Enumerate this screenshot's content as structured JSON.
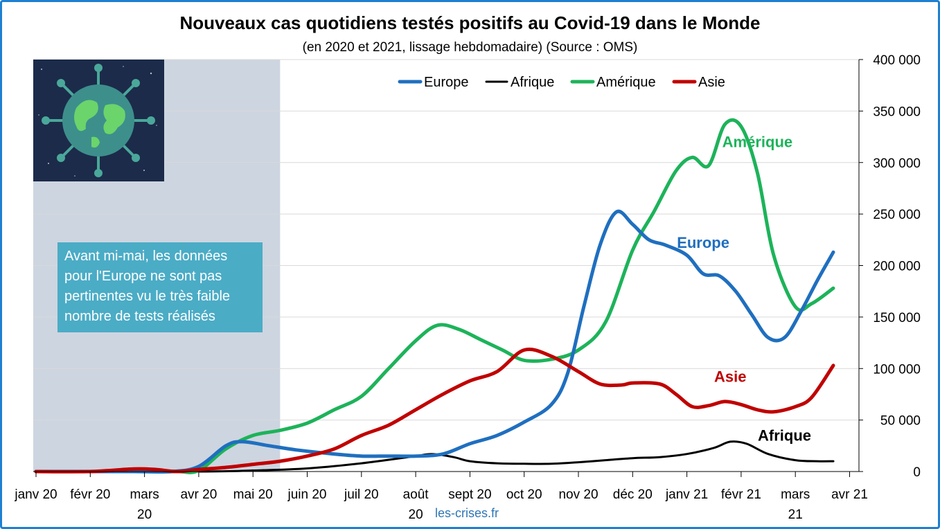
{
  "title": "Nouveaux cas quotidiens testés positifs au Covid-19 dans le Monde",
  "subtitle": "(en 2020 et 2021, lissage hebdomadaire) (Source : OMS)",
  "note": "Avant mi-mai, les données pour l'Europe ne sont pas pertinentes vu le très faible nombre de tests réalisés",
  "source": "les-crises.fr",
  "colors": {
    "Europe": "#1f6fbf",
    "Afrique": "#000000",
    "Amérique": "#1db35a",
    "Asie": "#c00000",
    "shade": "#cdd5e0"
  },
  "chart_data": {
    "type": "line",
    "title": "Nouveaux cas quotidiens testés positifs au Covid-19 dans le Monde",
    "subtitle": "(en 2020 et 2021, lissage hebdomadaire) (Source : OMS)",
    "ylim": [
      0,
      400000
    ],
    "yticks": [
      0,
      50000,
      100000,
      150000,
      200000,
      250000,
      300000,
      350000,
      400000
    ],
    "ytick_labels": [
      "0",
      "50 000",
      "100 000",
      "150 000",
      "200 000",
      "250 000",
      "300 000",
      "350 000",
      "400 000"
    ],
    "y_axis_position": "right",
    "x_labels": [
      {
        "line1": "janv 20",
        "line2": ""
      },
      {
        "line1": "févr 20",
        "line2": ""
      },
      {
        "line1": "mars",
        "line2": "20"
      },
      {
        "line1": "avr 20",
        "line2": ""
      },
      {
        "line1": "mai 20",
        "line2": ""
      },
      {
        "line1": "juin 20",
        "line2": ""
      },
      {
        "line1": "juil 20",
        "line2": ""
      },
      {
        "line1": "août",
        "line2": "20"
      },
      {
        "line1": "sept 20",
        "line2": ""
      },
      {
        "line1": "oct 20",
        "line2": ""
      },
      {
        "line1": "nov 20",
        "line2": ""
      },
      {
        "line1": "déc 20",
        "line2": ""
      },
      {
        "line1": "janv 21",
        "line2": ""
      },
      {
        "line1": "févr 21",
        "line2": ""
      },
      {
        "line1": "mars",
        "line2": "21"
      },
      {
        "line1": "avr 21",
        "line2": ""
      }
    ],
    "x_unit": "months since January 2020",
    "shaded_until_month": 4.5,
    "legend_position": "top",
    "series": [
      {
        "name": "Europe",
        "label": "Europe",
        "points": [
          [
            0,
            0
          ],
          [
            1,
            0
          ],
          [
            1.8,
            0
          ],
          [
            2.5,
            0
          ],
          [
            3,
            5000
          ],
          [
            3.5,
            25000
          ],
          [
            3.8,
            29000
          ],
          [
            4.3,
            25000
          ],
          [
            4.8,
            21000
          ],
          [
            5.5,
            17000
          ],
          [
            6,
            15000
          ],
          [
            6.5,
            15000
          ],
          [
            7,
            15000
          ],
          [
            7.5,
            17000
          ],
          [
            8,
            27000
          ],
          [
            8.5,
            35000
          ],
          [
            9,
            48000
          ],
          [
            9.5,
            65000
          ],
          [
            9.8,
            95000
          ],
          [
            10.1,
            160000
          ],
          [
            10.4,
            220000
          ],
          [
            10.7,
            252000
          ],
          [
            11,
            240000
          ],
          [
            11.3,
            225000
          ],
          [
            11.6,
            220000
          ],
          [
            12,
            210000
          ],
          [
            12.3,
            192000
          ],
          [
            12.6,
            190000
          ],
          [
            12.9,
            175000
          ],
          [
            13.2,
            152000
          ],
          [
            13.5,
            130000
          ],
          [
            13.8,
            130000
          ],
          [
            14.1,
            155000
          ],
          [
            14.4,
            185000
          ],
          [
            14.7,
            213000
          ]
        ]
      },
      {
        "name": "Afrique",
        "label": "Afrique",
        "points": [
          [
            0,
            0
          ],
          [
            3,
            0
          ],
          [
            4,
            1000
          ],
          [
            5,
            3000
          ],
          [
            6,
            8000
          ],
          [
            7,
            15000
          ],
          [
            7.3,
            17000
          ],
          [
            7.7,
            14000
          ],
          [
            8,
            10000
          ],
          [
            8.5,
            8000
          ],
          [
            9,
            7500
          ],
          [
            9.5,
            7500
          ],
          [
            10,
            9000
          ],
          [
            10.5,
            11000
          ],
          [
            11,
            13000
          ],
          [
            11.5,
            14000
          ],
          [
            12,
            17000
          ],
          [
            12.5,
            23000
          ],
          [
            12.8,
            29000
          ],
          [
            13.1,
            27000
          ],
          [
            13.5,
            17000
          ],
          [
            14,
            11000
          ],
          [
            14.4,
            10000
          ],
          [
            14.7,
            10000
          ]
        ]
      },
      {
        "name": "Amérique",
        "label": "Amérique",
        "points": [
          [
            0,
            0
          ],
          [
            1,
            0
          ],
          [
            2,
            0
          ],
          [
            2.6,
            0
          ],
          [
            3,
            1000
          ],
          [
            3.5,
            22000
          ],
          [
            4,
            35000
          ],
          [
            4.5,
            40000
          ],
          [
            5,
            47000
          ],
          [
            5.5,
            60000
          ],
          [
            6,
            73000
          ],
          [
            6.5,
            100000
          ],
          [
            7,
            127000
          ],
          [
            7.4,
            142000
          ],
          [
            7.8,
            138000
          ],
          [
            8.2,
            128000
          ],
          [
            8.6,
            118000
          ],
          [
            9,
            108000
          ],
          [
            9.5,
            109000
          ],
          [
            10,
            118000
          ],
          [
            10.5,
            145000
          ],
          [
            11,
            215000
          ],
          [
            11.4,
            253000
          ],
          [
            11.8,
            292000
          ],
          [
            12.1,
            305000
          ],
          [
            12.4,
            297000
          ],
          [
            12.7,
            337000
          ],
          [
            13,
            335000
          ],
          [
            13.3,
            290000
          ],
          [
            13.6,
            210000
          ],
          [
            14,
            160000
          ],
          [
            14.3,
            163000
          ],
          [
            14.7,
            178000
          ]
        ]
      },
      {
        "name": "Asie",
        "label": "Asie",
        "points": [
          [
            0,
            0
          ],
          [
            1,
            0
          ],
          [
            1.8,
            2500
          ],
          [
            2.2,
            2000
          ],
          [
            2.6,
            0
          ],
          [
            3,
            2000
          ],
          [
            3.5,
            4000
          ],
          [
            4,
            7000
          ],
          [
            4.5,
            10000
          ],
          [
            5,
            15000
          ],
          [
            5.5,
            22000
          ],
          [
            6,
            35000
          ],
          [
            6.5,
            45000
          ],
          [
            7,
            60000
          ],
          [
            7.5,
            75000
          ],
          [
            8,
            88000
          ],
          [
            8.5,
            97000
          ],
          [
            9,
            118000
          ],
          [
            9.5,
            112000
          ],
          [
            10,
            97000
          ],
          [
            10.4,
            85000
          ],
          [
            10.8,
            84000
          ],
          [
            11,
            86000
          ],
          [
            11.5,
            85000
          ],
          [
            11.8,
            75000
          ],
          [
            12.1,
            63000
          ],
          [
            12.4,
            64000
          ],
          [
            12.7,
            68000
          ],
          [
            13,
            65000
          ],
          [
            13.3,
            60000
          ],
          [
            13.6,
            58000
          ],
          [
            14,
            63000
          ],
          [
            14.3,
            72000
          ],
          [
            14.7,
            103000
          ]
        ]
      }
    ],
    "series_annotations": [
      {
        "series": "Amérique",
        "text": "Amérique",
        "x": 13.3,
        "y": 315000
      },
      {
        "series": "Europe",
        "text": "Europe",
        "x": 12.3,
        "y": 217000
      },
      {
        "series": "Asie",
        "text": "Asie",
        "x": 12.8,
        "y": 87000
      },
      {
        "series": "Afrique",
        "text": "Afrique",
        "x": 13.8,
        "y": 30000
      }
    ]
  }
}
